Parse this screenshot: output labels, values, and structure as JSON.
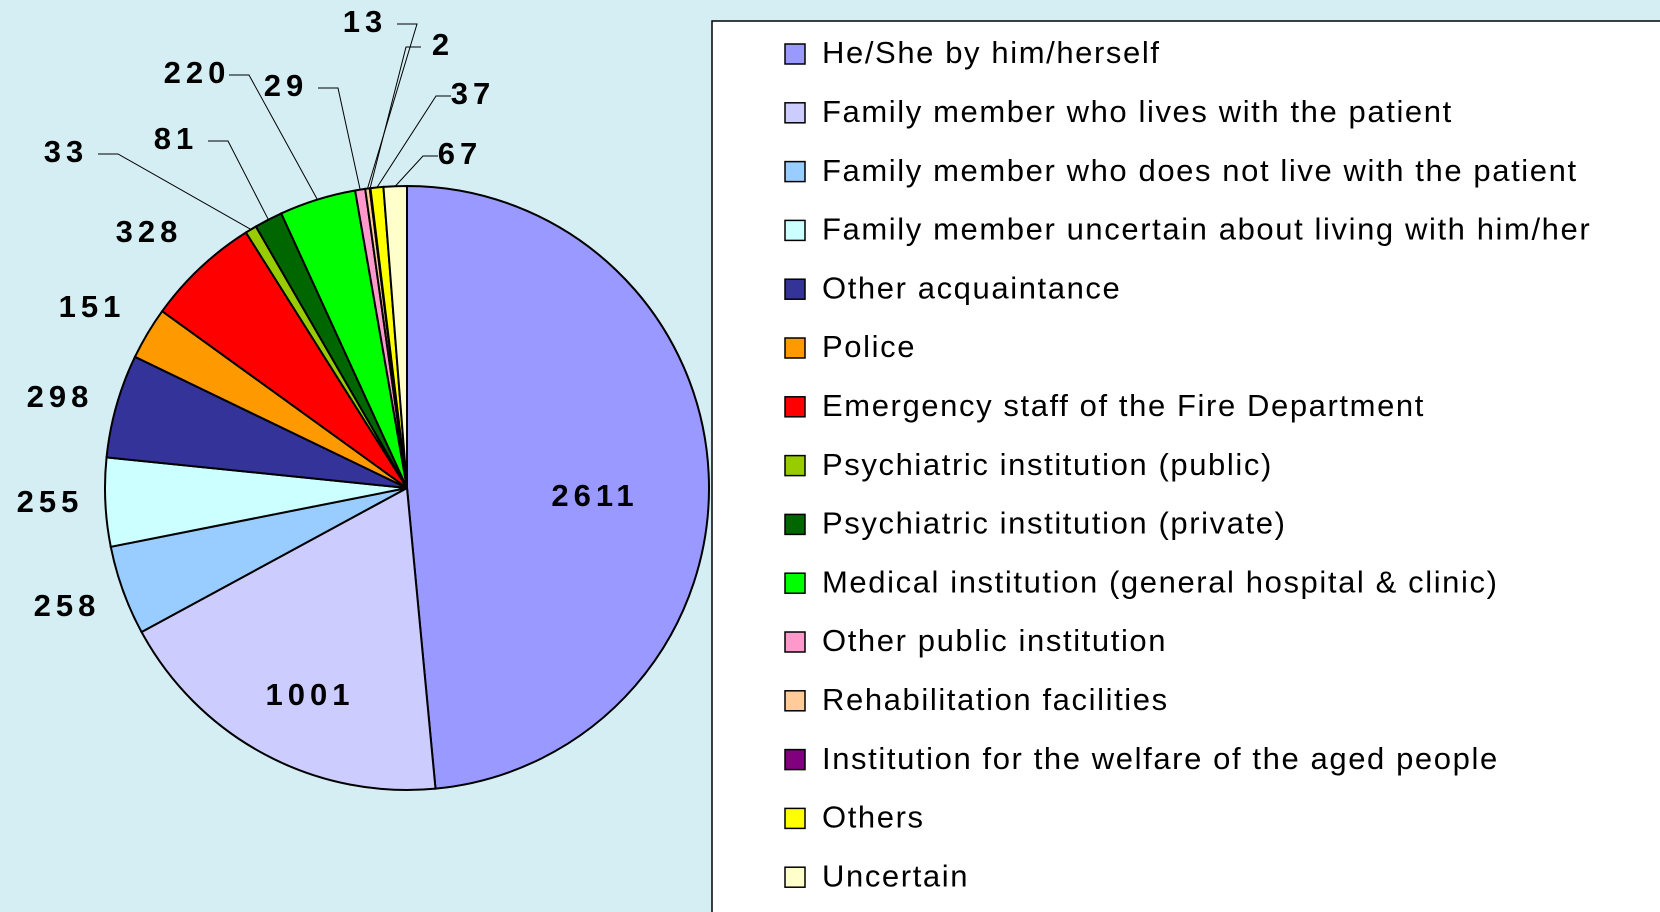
{
  "chart_data": {
    "type": "pie",
    "categories": [
      "He/She by him/herself",
      "Family member who lives with the patient",
      "Family member who does not live with the patient",
      "Family member uncertain about living with him/her",
      "Other acquaintance",
      "Police",
      "Emergency staff of the Fire Department",
      "Psychiatric institution (public)",
      "Psychiatric institution (private)",
      "Medical institution (general hospital & clinic)",
      "Other public institution",
      "Rehabilitation facilities",
      "Institution for the welfare of the aged people",
      "Others",
      "Uncertain"
    ],
    "values": [
      2611,
      1001,
      258,
      255,
      298,
      151,
      328,
      33,
      81,
      220,
      29,
      13,
      2,
      37,
      67
    ],
    "colors": [
      "#9999ff",
      "#ccccff",
      "#99ccff",
      "#ccffff",
      "#333399",
      "#ff9900",
      "#ff0000",
      "#99cc00",
      "#006600",
      "#00ff00",
      "#ff99cc",
      "#ffcc99",
      "#800080",
      "#ffff00",
      "#ffffcc"
    ]
  }
}
